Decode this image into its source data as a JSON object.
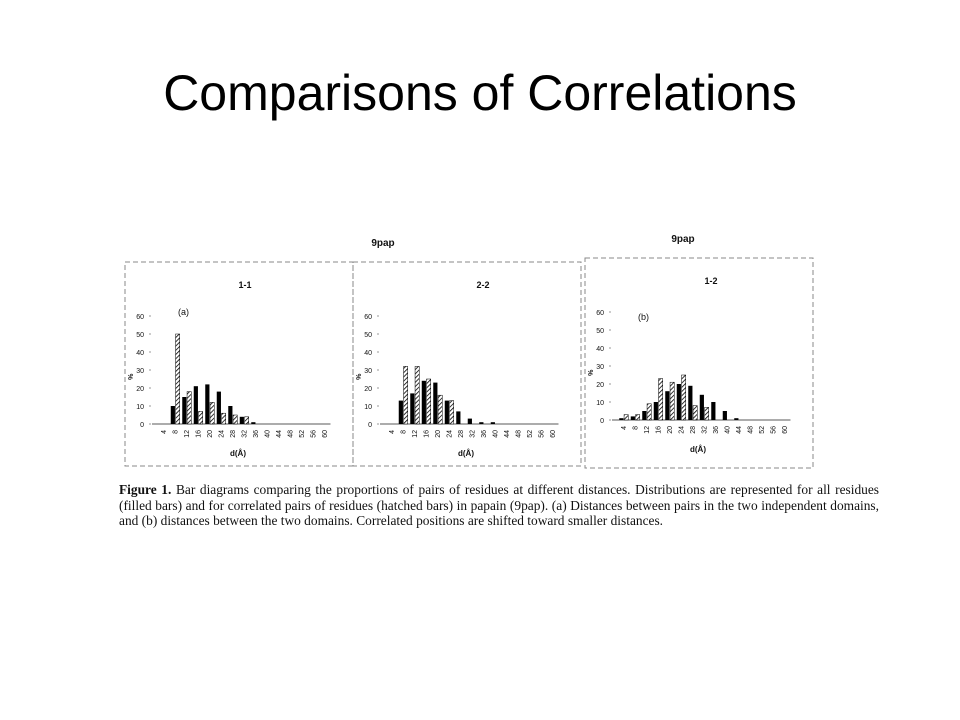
{
  "slide": {
    "title": "Comparisons of Correlations"
  },
  "figure": {
    "caption_label": "Figure 1.",
    "caption_text": " Bar diagrams comparing the proportions of pairs of residues at different distances. Distributions are represented for all residues (filled bars) and for correlated pairs of residues (hatched bars) in papain (9pap). (a) Distances between pairs in the two independent domains, and (b) distances between the two domains. Correlated positions are shifted toward smaller distances."
  },
  "chart_data": [
    {
      "type": "bar",
      "header": "9pap",
      "title": "1-1",
      "panel_label": "(a)",
      "xlabel": "d(Å)",
      "ylabel": "%",
      "ylim": [
        0,
        60
      ],
      "yticks": [
        0,
        10,
        20,
        30,
        40,
        50,
        60
      ],
      "categories": [
        "4",
        "8",
        "12",
        "16",
        "20",
        "24",
        "28",
        "32",
        "36",
        "40",
        "44",
        "48",
        "52",
        "56",
        "60"
      ],
      "series": [
        {
          "pattern": "filled",
          "values": [
            0,
            10,
            15,
            21,
            22,
            18,
            10,
            4,
            1,
            0,
            0,
            0,
            0,
            0,
            0
          ]
        },
        {
          "pattern": "hatched",
          "values": [
            0,
            50,
            18,
            7,
            12,
            6,
            5,
            4,
            0,
            0,
            0,
            0,
            0,
            0,
            0
          ]
        }
      ]
    },
    {
      "type": "bar",
      "header": "",
      "title": "2-2",
      "panel_label": "",
      "xlabel": "d(Å)",
      "ylabel": "%",
      "ylim": [
        0,
        60
      ],
      "yticks": [
        0,
        10,
        20,
        30,
        40,
        50,
        60
      ],
      "categories": [
        "4",
        "8",
        "12",
        "16",
        "20",
        "24",
        "28",
        "32",
        "36",
        "40",
        "44",
        "48",
        "52",
        "56",
        "60"
      ],
      "series": [
        {
          "pattern": "filled",
          "values": [
            0,
            13,
            17,
            24,
            23,
            13,
            7,
            3,
            1,
            1,
            0,
            0,
            0,
            0,
            0
          ]
        },
        {
          "pattern": "hatched",
          "values": [
            0,
            32,
            32,
            25,
            16,
            13,
            0,
            0,
            0,
            0,
            0,
            0,
            0,
            0,
            0
          ]
        }
      ]
    },
    {
      "type": "bar",
      "header": "9pap",
      "title": "1-2",
      "panel_label": "(b)",
      "xlabel": "d(Å)",
      "ylabel": "%",
      "ylim": [
        0,
        60
      ],
      "yticks": [
        0,
        10,
        20,
        30,
        40,
        50,
        60
      ],
      "categories": [
        "4",
        "8",
        "12",
        "16",
        "20",
        "24",
        "28",
        "32",
        "36",
        "40",
        "44",
        "48",
        "52",
        "56",
        "60"
      ],
      "series": [
        {
          "pattern": "filled",
          "values": [
            1,
            2,
            5,
            10,
            16,
            20,
            19,
            14,
            10,
            5,
            1,
            0,
            0,
            0,
            0
          ]
        },
        {
          "pattern": "hatched",
          "values": [
            3,
            3,
            9,
            23,
            21,
            25,
            8,
            7,
            0,
            0,
            0,
            0,
            0,
            0,
            0
          ]
        }
      ]
    }
  ]
}
